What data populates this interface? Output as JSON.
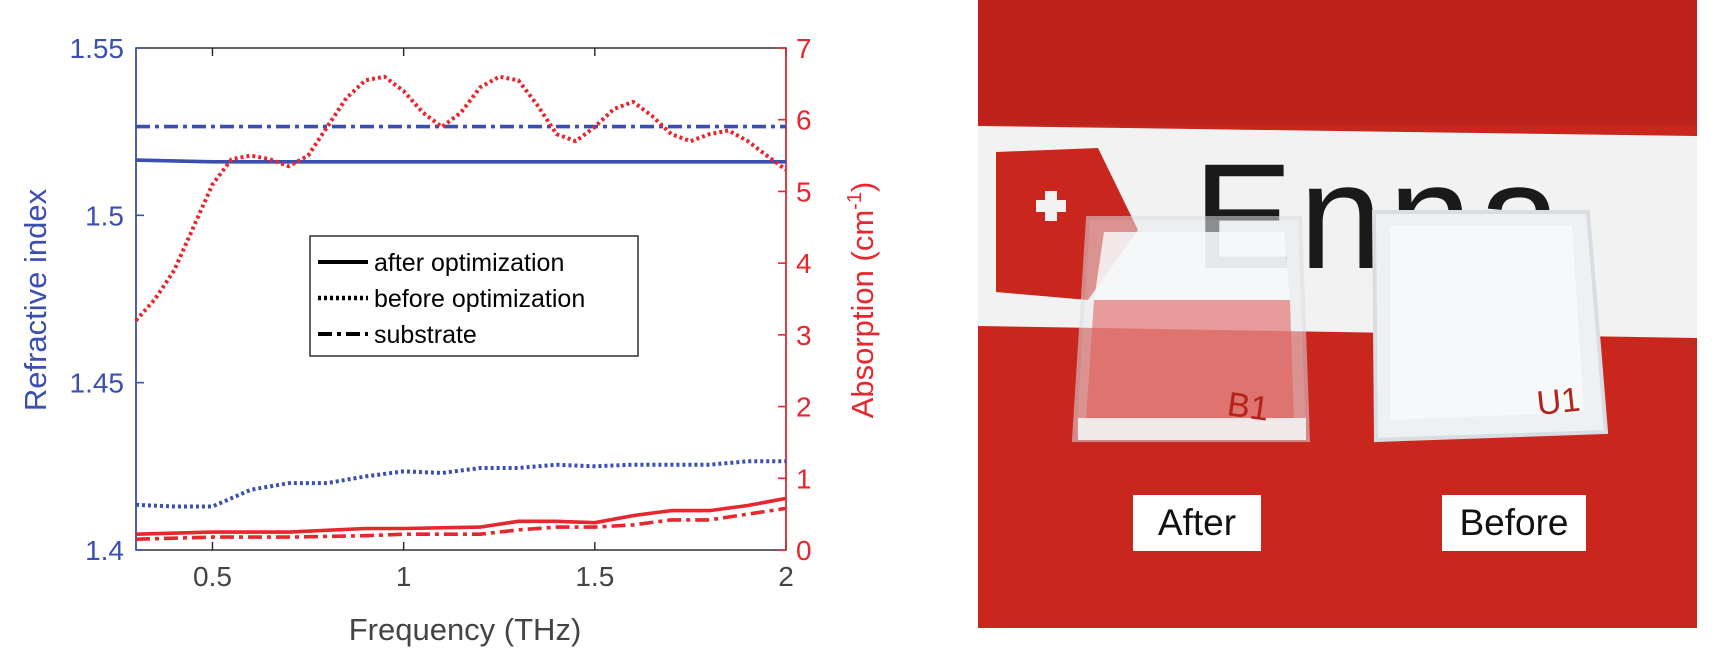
{
  "chart_data": {
    "type": "line",
    "xlabel": "Frequency (THz)",
    "ylabel_left": "Refractive index",
    "ylabel_right": "Absorption (cm",
    "ylabel_right_superscript": "-1",
    "ylabel_right_close": ")",
    "xlim": [
      0.3,
      2.0
    ],
    "ylim_left": [
      1.4,
      1.55
    ],
    "ylim_right": [
      0,
      7
    ],
    "xticks": [
      "0.5",
      "1",
      "1.5",
      "2"
    ],
    "xtick_values": [
      0.5,
      1,
      1.5,
      2
    ],
    "yticks_left": [
      "1.4",
      "1.45",
      "1.5",
      "1.55"
    ],
    "ytick_values_left": [
      1.4,
      1.45,
      1.5,
      1.55
    ],
    "yticks_right": [
      "0",
      "1",
      "2",
      "3",
      "4",
      "5",
      "6",
      "7"
    ],
    "ytick_values_right": [
      0,
      1,
      2,
      3,
      4,
      5,
      6,
      7
    ],
    "grid": false,
    "legend_position": "center",
    "legend": [
      {
        "label": "after optimization",
        "style": "solid"
      },
      {
        "label": "before optimization",
        "style": "dotted"
      },
      {
        "label": "substrate",
        "style": "dashdot"
      }
    ],
    "colors": {
      "refractive": "#3a4fb0",
      "absorption": "#e8262d",
      "text_left": "#3a4fb0",
      "text_right": "#e8262d"
    },
    "series": [
      {
        "name": "after optimization",
        "quantity": "refractive index",
        "axis": "left",
        "x": [
          0.3,
          0.5,
          0.7,
          1.0,
          1.3,
          1.6,
          1.8,
          2.0
        ],
        "y": [
          1.5165,
          1.516,
          1.516,
          1.516,
          1.516,
          1.516,
          1.516,
          1.516
        ]
      },
      {
        "name": "before optimization",
        "quantity": "refractive index",
        "axis": "left",
        "x": [
          0.3,
          0.4,
          0.5,
          0.6,
          0.7,
          0.8,
          0.9,
          1.0,
          1.1,
          1.2,
          1.3,
          1.4,
          1.5,
          1.6,
          1.7,
          1.8,
          1.9,
          2.0
        ],
        "y": [
          1.4135,
          1.413,
          1.413,
          1.418,
          1.42,
          1.42,
          1.422,
          1.4235,
          1.423,
          1.4245,
          1.4245,
          1.4255,
          1.425,
          1.4255,
          1.4255,
          1.4255,
          1.4265,
          1.4265
        ]
      },
      {
        "name": "substrate",
        "quantity": "refractive index",
        "axis": "left",
        "x": [
          0.3,
          0.5,
          1.0,
          1.5,
          2.0
        ],
        "y": [
          1.5265,
          1.5265,
          1.5265,
          1.5265,
          1.5265
        ]
      },
      {
        "name": "after optimization",
        "quantity": "absorption",
        "axis": "right",
        "x": [
          0.3,
          0.5,
          0.7,
          0.9,
          1.0,
          1.2,
          1.3,
          1.4,
          1.5,
          1.6,
          1.7,
          1.8,
          1.9,
          2.0
        ],
        "y": [
          0.22,
          0.25,
          0.25,
          0.3,
          0.3,
          0.32,
          0.4,
          0.4,
          0.38,
          0.48,
          0.55,
          0.55,
          0.62,
          0.72
        ]
      },
      {
        "name": "before optimization",
        "quantity": "absorption",
        "axis": "right",
        "x": [
          0.3,
          0.35,
          0.4,
          0.45,
          0.5,
          0.55,
          0.6,
          0.65,
          0.7,
          0.75,
          0.8,
          0.85,
          0.9,
          0.95,
          1.0,
          1.05,
          1.1,
          1.15,
          1.2,
          1.25,
          1.3,
          1.35,
          1.4,
          1.45,
          1.5,
          1.55,
          1.6,
          1.65,
          1.7,
          1.75,
          1.8,
          1.85,
          1.9,
          1.95,
          2.0
        ],
        "y": [
          3.2,
          3.5,
          3.9,
          4.5,
          5.1,
          5.45,
          5.5,
          5.45,
          5.35,
          5.5,
          5.9,
          6.3,
          6.55,
          6.6,
          6.4,
          6.1,
          5.9,
          6.1,
          6.45,
          6.6,
          6.55,
          6.2,
          5.8,
          5.7,
          5.9,
          6.15,
          6.25,
          6.05,
          5.8,
          5.7,
          5.8,
          5.85,
          5.7,
          5.5,
          5.3
        ]
      },
      {
        "name": "substrate",
        "quantity": "absorption",
        "axis": "right",
        "x": [
          0.3,
          0.5,
          0.7,
          0.9,
          1.0,
          1.2,
          1.3,
          1.4,
          1.5,
          1.6,
          1.7,
          1.8,
          1.9,
          2.0
        ],
        "y": [
          0.15,
          0.18,
          0.18,
          0.2,
          0.22,
          0.22,
          0.28,
          0.32,
          0.32,
          0.35,
          0.42,
          0.42,
          0.5,
          0.58
        ]
      }
    ]
  },
  "photo": {
    "label_after": "After",
    "label_before": "Before",
    "sample_mark_left": "B1",
    "sample_mark_right": "U1",
    "banner_text": "Enna",
    "colors": {
      "background": "#c9261e",
      "banner": "#f2f2f2",
      "sample": "#e9ecef"
    }
  }
}
